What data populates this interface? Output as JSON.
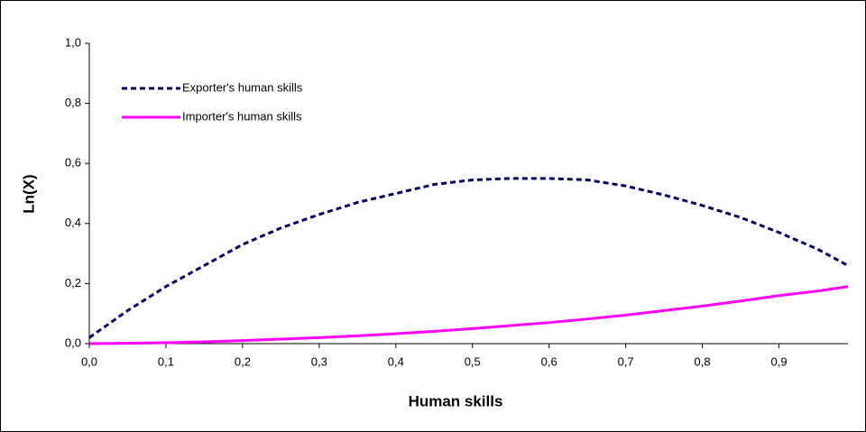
{
  "chart_data": {
    "type": "line",
    "x_label": "Human skills",
    "y_label": "Ln(X)",
    "x": [
      0,
      0.05,
      0.1,
      0.15,
      0.2,
      0.25,
      0.3,
      0.35,
      0.4,
      0.45,
      0.5,
      0.55,
      0.6,
      0.65,
      0.7,
      0.75,
      0.8,
      0.85,
      0.9,
      0.95,
      0.99
    ],
    "series": [
      {
        "name": "Exporter's human skills",
        "color": "#000066",
        "dash": true,
        "values": [
          0.02,
          0.11,
          0.19,
          0.26,
          0.33,
          0.385,
          0.43,
          0.47,
          0.5,
          0.53,
          0.545,
          0.55,
          0.55,
          0.545,
          0.525,
          0.495,
          0.46,
          0.42,
          0.37,
          0.315,
          0.26
        ]
      },
      {
        "name": "Importer's human skills",
        "color": "#ff00ff",
        "dash": false,
        "values": [
          0,
          0.001,
          0.003,
          0.006,
          0.01,
          0.015,
          0.02,
          0.026,
          0.033,
          0.041,
          0.05,
          0.06,
          0.07,
          0.082,
          0.095,
          0.11,
          0.125,
          0.142,
          0.16,
          0.175,
          0.19
        ]
      }
    ],
    "xlim": [
      0,
      0.99
    ],
    "ylim": [
      0,
      1
    ],
    "xticks": [
      {
        "value": 0,
        "label": "0,0"
      },
      {
        "value": 0.1,
        "label": "0,1"
      },
      {
        "value": 0.2,
        "label": "0,2"
      },
      {
        "value": 0.3,
        "label": "0,3"
      },
      {
        "value": 0.4,
        "label": "0,4"
      },
      {
        "value": 0.5,
        "label": "0,5"
      },
      {
        "value": 0.6,
        "label": "0,6"
      },
      {
        "value": 0.7,
        "label": "0,7"
      },
      {
        "value": 0.8,
        "label": "0,8"
      },
      {
        "value": 0.9,
        "label": "0,9"
      }
    ],
    "yticks": [
      {
        "value": 0,
        "label": "0,0"
      },
      {
        "value": 0.2,
        "label": "0,2"
      },
      {
        "value": 0.4,
        "label": "0,4"
      },
      {
        "value": 0.6,
        "label": "0,6"
      },
      {
        "value": 0.8,
        "label": "0,8"
      },
      {
        "value": 1,
        "label": "1,0"
      }
    ],
    "grid": false,
    "legend": "upper left"
  }
}
